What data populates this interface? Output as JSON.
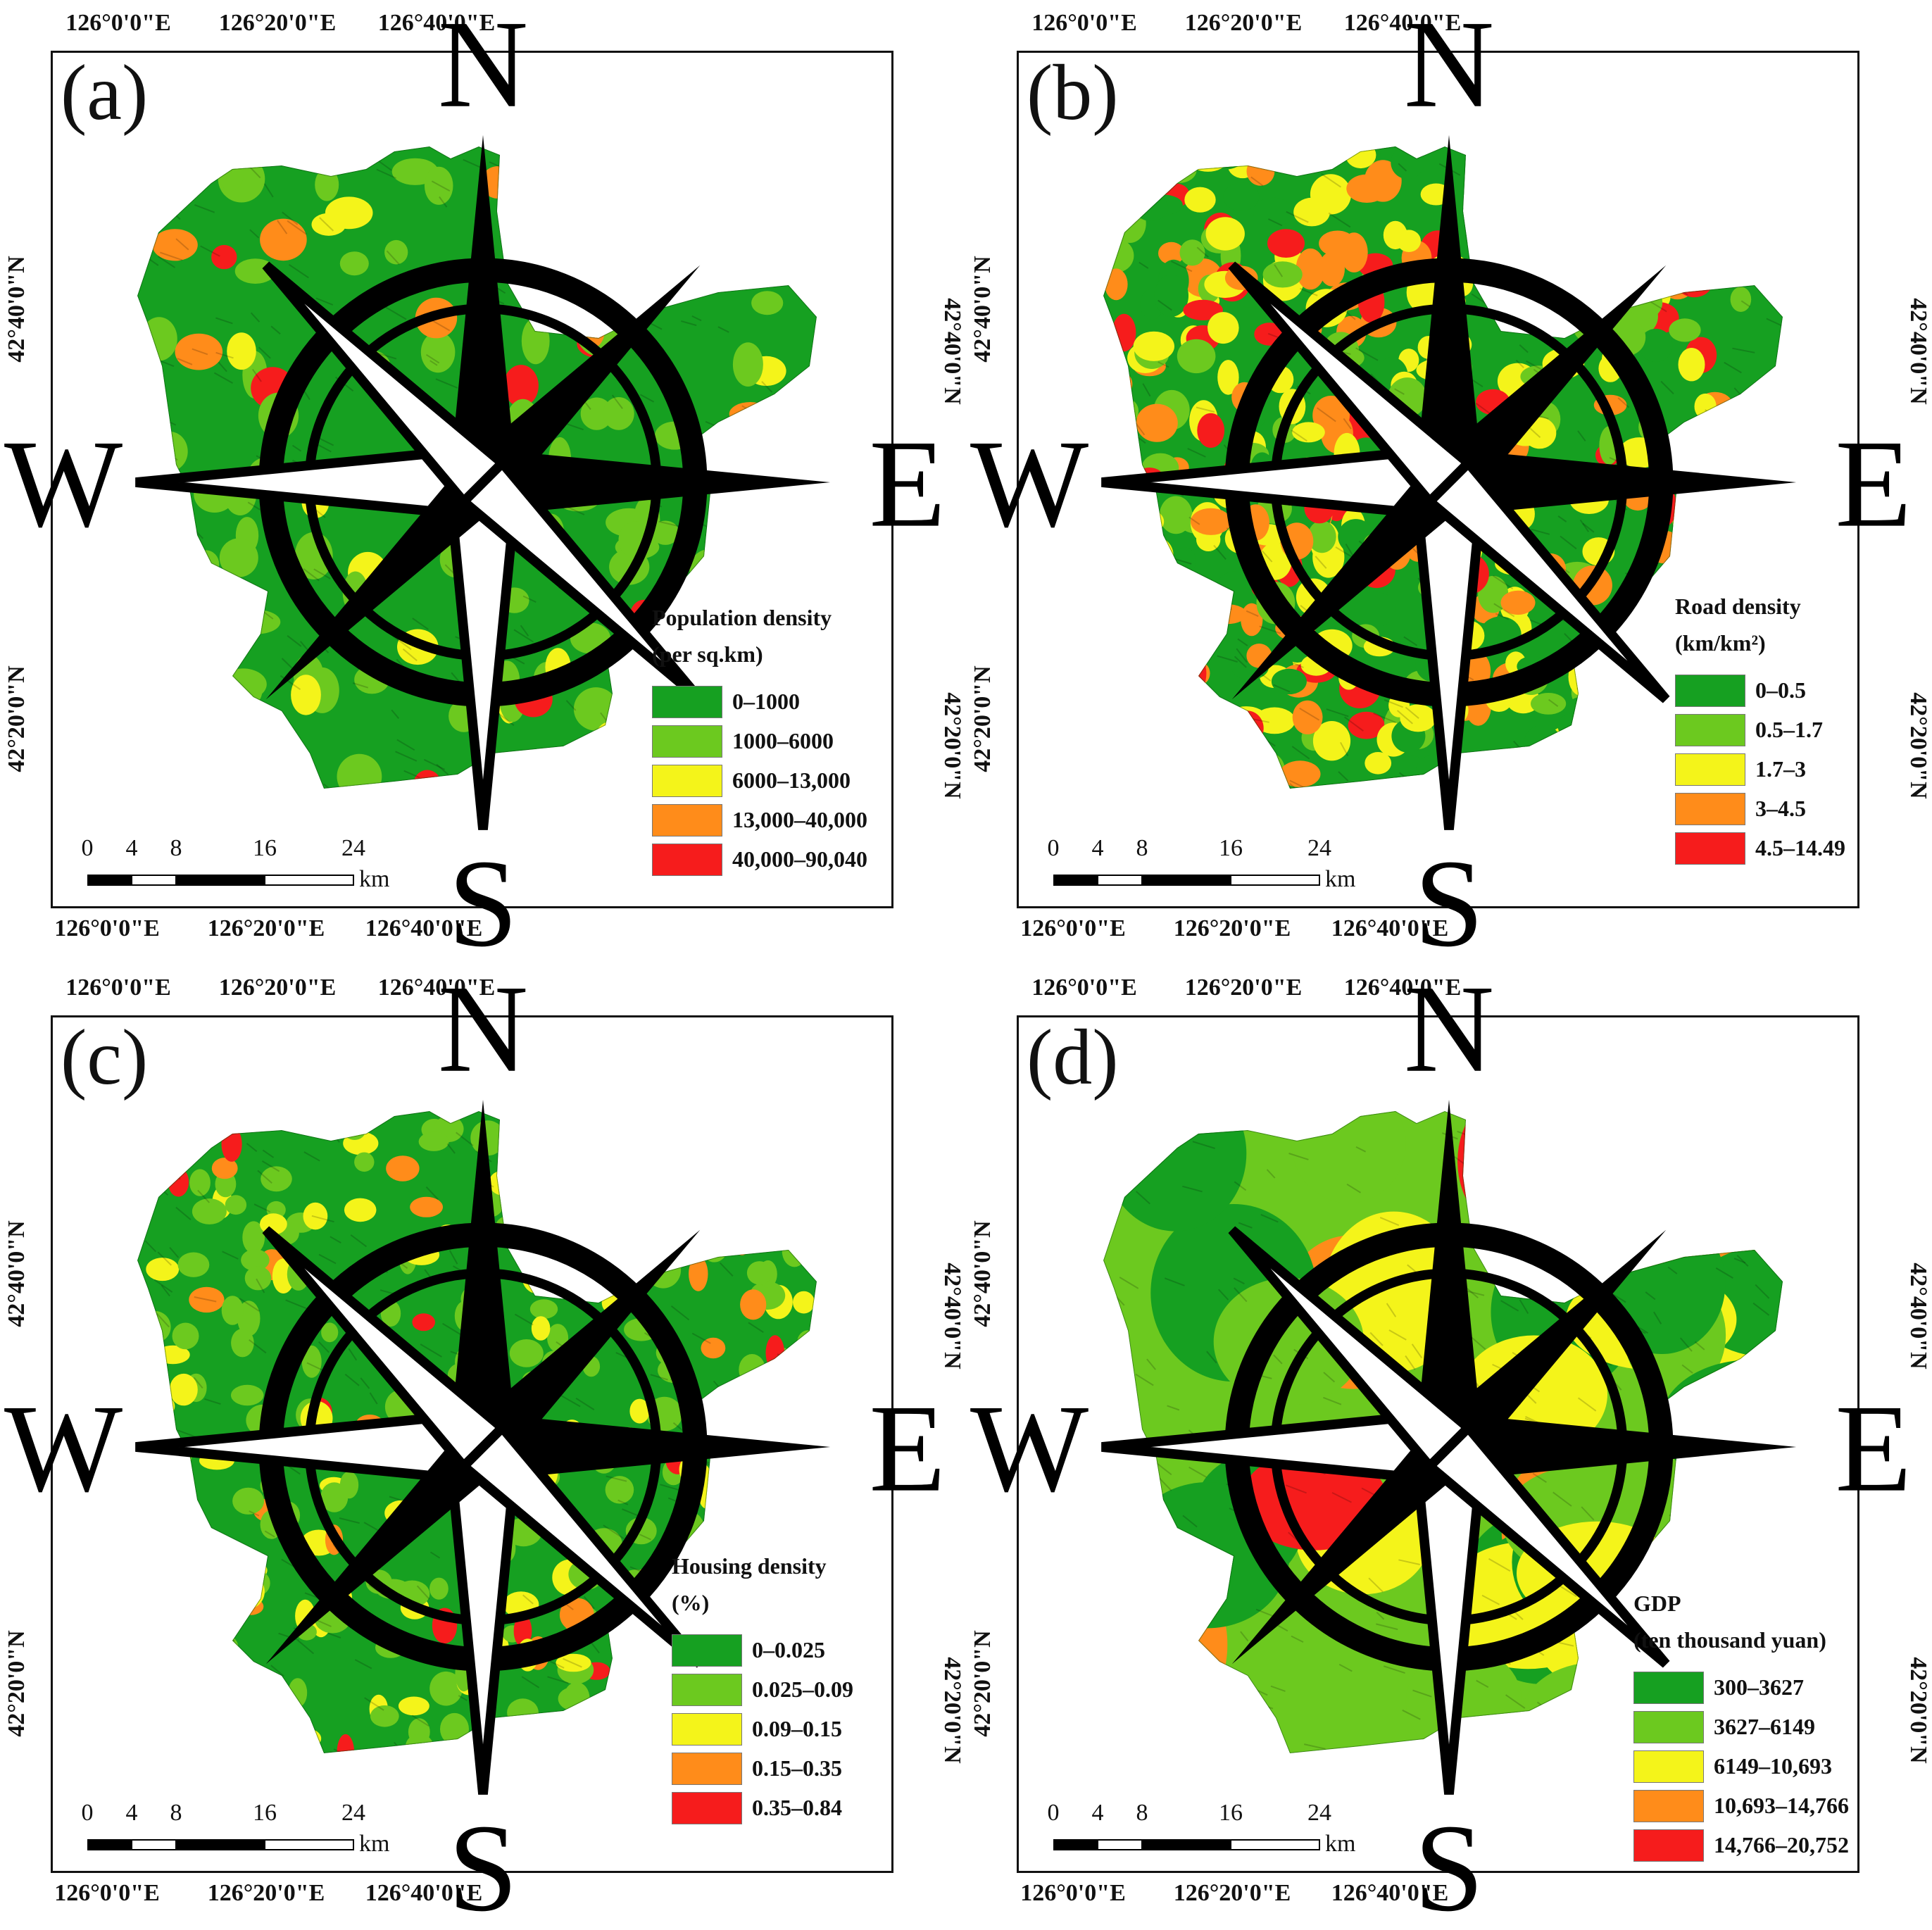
{
  "panels": [
    {
      "label": "(a)",
      "legend_title": "Population density",
      "legend_subtitle": "(per sq.km)",
      "classes": [
        "0–1000",
        "1000–6000",
        "6000–13,000",
        "13,000–40,000",
        "40,000–90,040"
      ]
    },
    {
      "label": "(b)",
      "legend_title": "Road density",
      "legend_subtitle": "(km/km²)",
      "classes": [
        "0–0.5",
        "0.5–1.7",
        "1.7–3",
        "3–4.5",
        "4.5–14.49"
      ]
    },
    {
      "label": "(c)",
      "legend_title": "Housing density",
      "legend_subtitle": "(%)",
      "classes": [
        "0–0.025",
        "0.025–0.09",
        "0.09–0.15",
        "0.15–0.35",
        "0.35–0.84"
      ]
    },
    {
      "label": "(d)",
      "legend_title": "GDP",
      "legend_subtitle": "(ten thousand yuan)",
      "classes": [
        "300–3627",
        "3627–6149",
        "6149–10,693",
        "10,693–14,766",
        "14,766–20,752"
      ]
    }
  ],
  "axes": {
    "lon_ticks": [
      "126°0'0\"E",
      "126°20'0\"E",
      "126°40'0\"E"
    ],
    "lat_ticks": [
      "42°40'0\"N",
      "42°20'0\"N"
    ]
  },
  "scale_bar": {
    "ticks": [
      "0",
      "4",
      "8",
      "16",
      "24"
    ],
    "unit": "km"
  },
  "compass": {
    "n": "N",
    "e": "E",
    "s": "S",
    "w": "W"
  },
  "class_colors": [
    "#16a021",
    "#6cc91f",
    "#f4f41a",
    "#ff8c1a",
    "#f61c1c"
  ]
}
